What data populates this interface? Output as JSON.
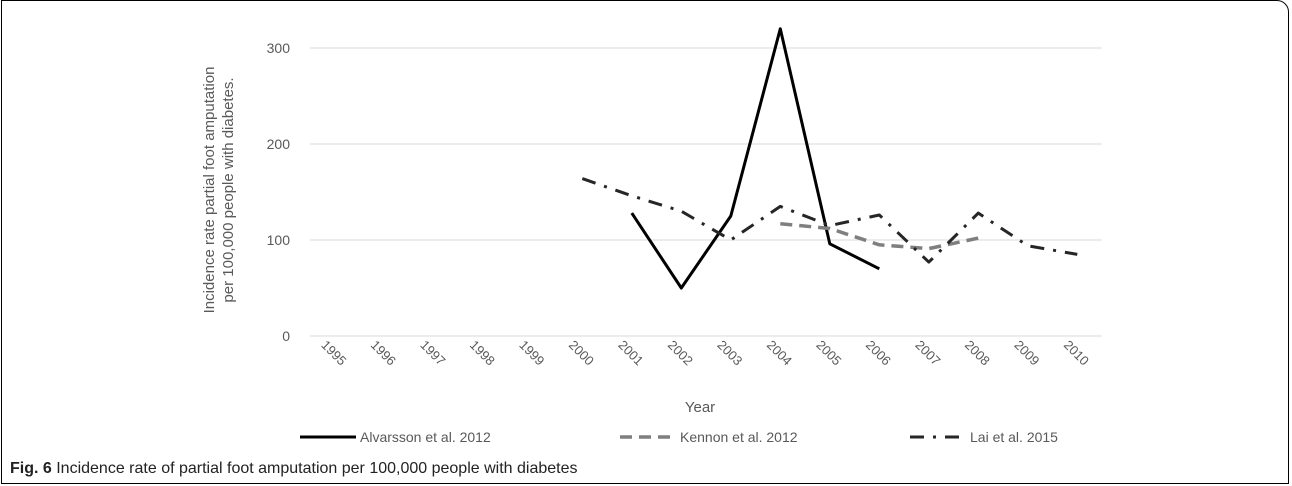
{
  "figure": {
    "label": "Fig. 6",
    "caption": "Incidence rate of partial foot amputation per 100,000 people with diabetes"
  },
  "colors": {
    "gridline": "#d9d9d9",
    "text": "#595959",
    "alvarsson": "#000000",
    "kennon": "#7f7f7f",
    "lai": "#262626"
  },
  "chart_data": {
    "type": "line",
    "title": "",
    "xlabel": "Year",
    "ylabel": "Incidence rate partial foot amputation per 100,000 people with diabetes.",
    "categories": [
      "1995",
      "1996",
      "1997",
      "1998",
      "1999",
      "2000",
      "2001",
      "2002",
      "2003",
      "2004",
      "2005",
      "2006",
      "2007",
      "2008",
      "2009",
      "2010"
    ],
    "ylim": [
      0,
      300
    ],
    "yticks": [
      0,
      100,
      200,
      300
    ],
    "grid": true,
    "legend_position": "bottom",
    "series": [
      {
        "name": "Alvarsson et al. 2012",
        "style": "solid",
        "values": [
          null,
          null,
          null,
          null,
          null,
          null,
          128,
          50,
          125,
          320,
          96,
          70,
          null,
          null,
          null,
          null
        ]
      },
      {
        "name": "Kennon et al. 2012",
        "style": "dashed",
        "values": [
          null,
          null,
          null,
          null,
          null,
          null,
          null,
          null,
          null,
          117,
          112,
          95,
          91,
          102,
          null,
          null
        ]
      },
      {
        "name": "Lai et al. 2015",
        "style": "dashdot",
        "values": [
          null,
          null,
          null,
          null,
          null,
          164,
          146,
          130,
          100,
          135,
          115,
          126,
          77,
          128,
          94,
          85
        ]
      }
    ]
  }
}
